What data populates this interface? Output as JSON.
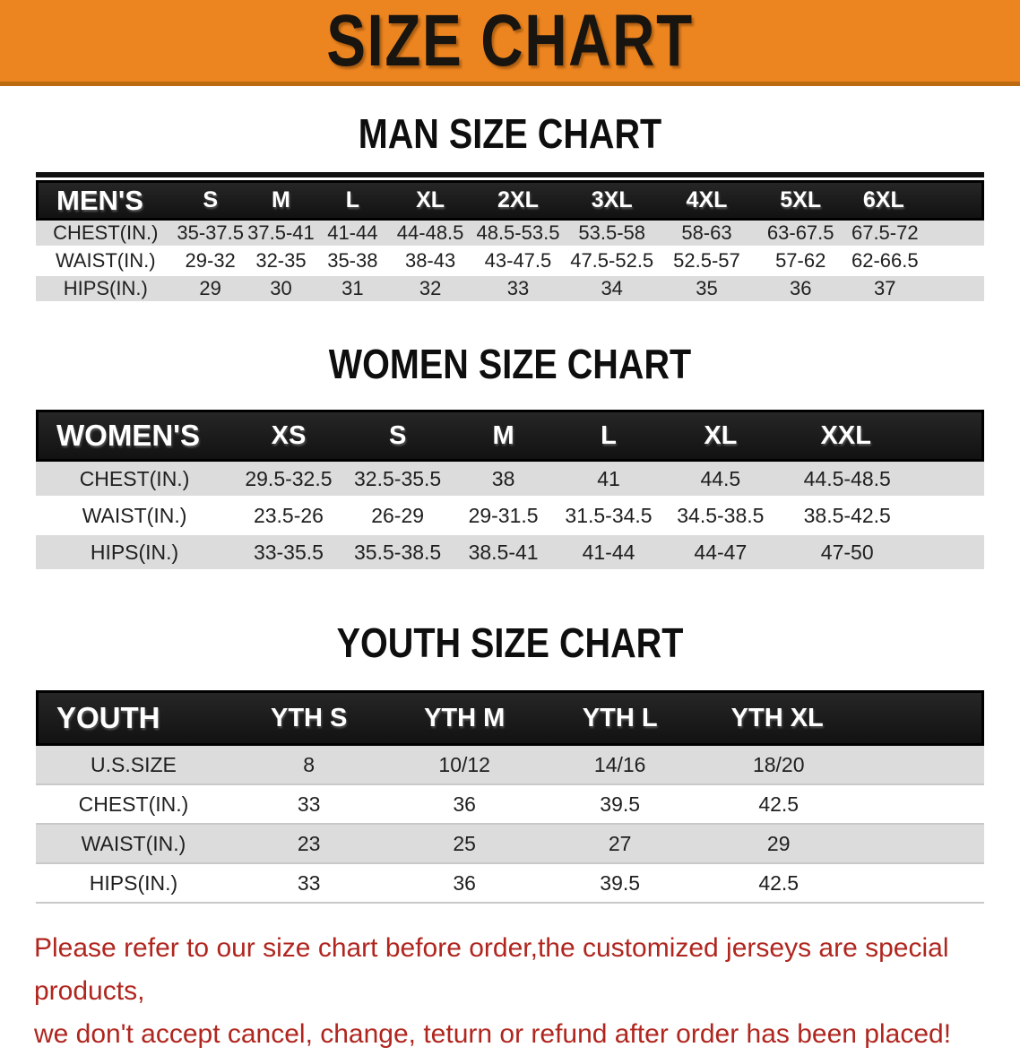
{
  "banner": {
    "title": "SIZE CHART"
  },
  "colors": {
    "banner_bg": "#EC8520",
    "banner_border": "#BC6A10",
    "header_bar": "#1B1B1B",
    "row_gray": "#DCDCDC",
    "disclaimer_red": "#B0261F"
  },
  "chart_data": [
    {
      "type": "table",
      "title": "MAN SIZE CHART",
      "columns": [
        "MEN'S",
        "S",
        "M",
        "L",
        "XL",
        "2XL",
        "3XL",
        "4XL",
        "5XL",
        "6XL"
      ],
      "rows": [
        [
          "CHEST(IN.)",
          "35-37.5",
          "37.5-41",
          "41-44",
          "44-48.5",
          "48.5-53.5",
          "53.5-58",
          "58-63",
          "63-67.5",
          "67.5-72"
        ],
        [
          "WAIST(IN.)",
          "29-32",
          "32-35",
          "35-38",
          "38-43",
          "43-47.5",
          "47.5-52.5",
          "52.5-57",
          "57-62",
          "62-66.5"
        ],
        [
          "HIPS(IN.)",
          "29",
          "30",
          "31",
          "32",
          "33",
          "34",
          "35",
          "36",
          "37"
        ]
      ]
    },
    {
      "type": "table",
      "title": "WOMEN SIZE CHART",
      "columns": [
        "WOMEN'S",
        "XS",
        "S",
        "M",
        "L",
        "XL",
        "XXL"
      ],
      "rows": [
        [
          "CHEST(IN.)",
          "29.5-32.5",
          "32.5-35.5",
          "38",
          "41",
          "44.5",
          "44.5-48.5"
        ],
        [
          "WAIST(IN.)",
          "23.5-26",
          "26-29",
          "29-31.5",
          "31.5-34.5",
          "34.5-38.5",
          "38.5-42.5"
        ],
        [
          "HIPS(IN.)",
          "33-35.5",
          "35.5-38.5",
          "38.5-41",
          "41-44",
          "44-47",
          "47-50"
        ]
      ]
    },
    {
      "type": "table",
      "title": "YOUTH SIZE CHART",
      "columns": [
        "YOUTH",
        "YTH S",
        "YTH M",
        "YTH L",
        "YTH XL"
      ],
      "rows": [
        [
          "U.S.SIZE",
          "8",
          "10/12",
          "14/16",
          "18/20"
        ],
        [
          "CHEST(IN.)",
          "33",
          "36",
          "39.5",
          "42.5"
        ],
        [
          "WAIST(IN.)",
          "23",
          "25",
          "27",
          "29"
        ],
        [
          "HIPS(IN.)",
          "33",
          "36",
          "39.5",
          "42.5"
        ]
      ]
    }
  ],
  "disclaimer": {
    "line1": "Please refer to our size chart before order,the customized jerseys are special products,",
    "line2": "we don't accept cancel, change, teturn or refund after order has been placed!"
  }
}
